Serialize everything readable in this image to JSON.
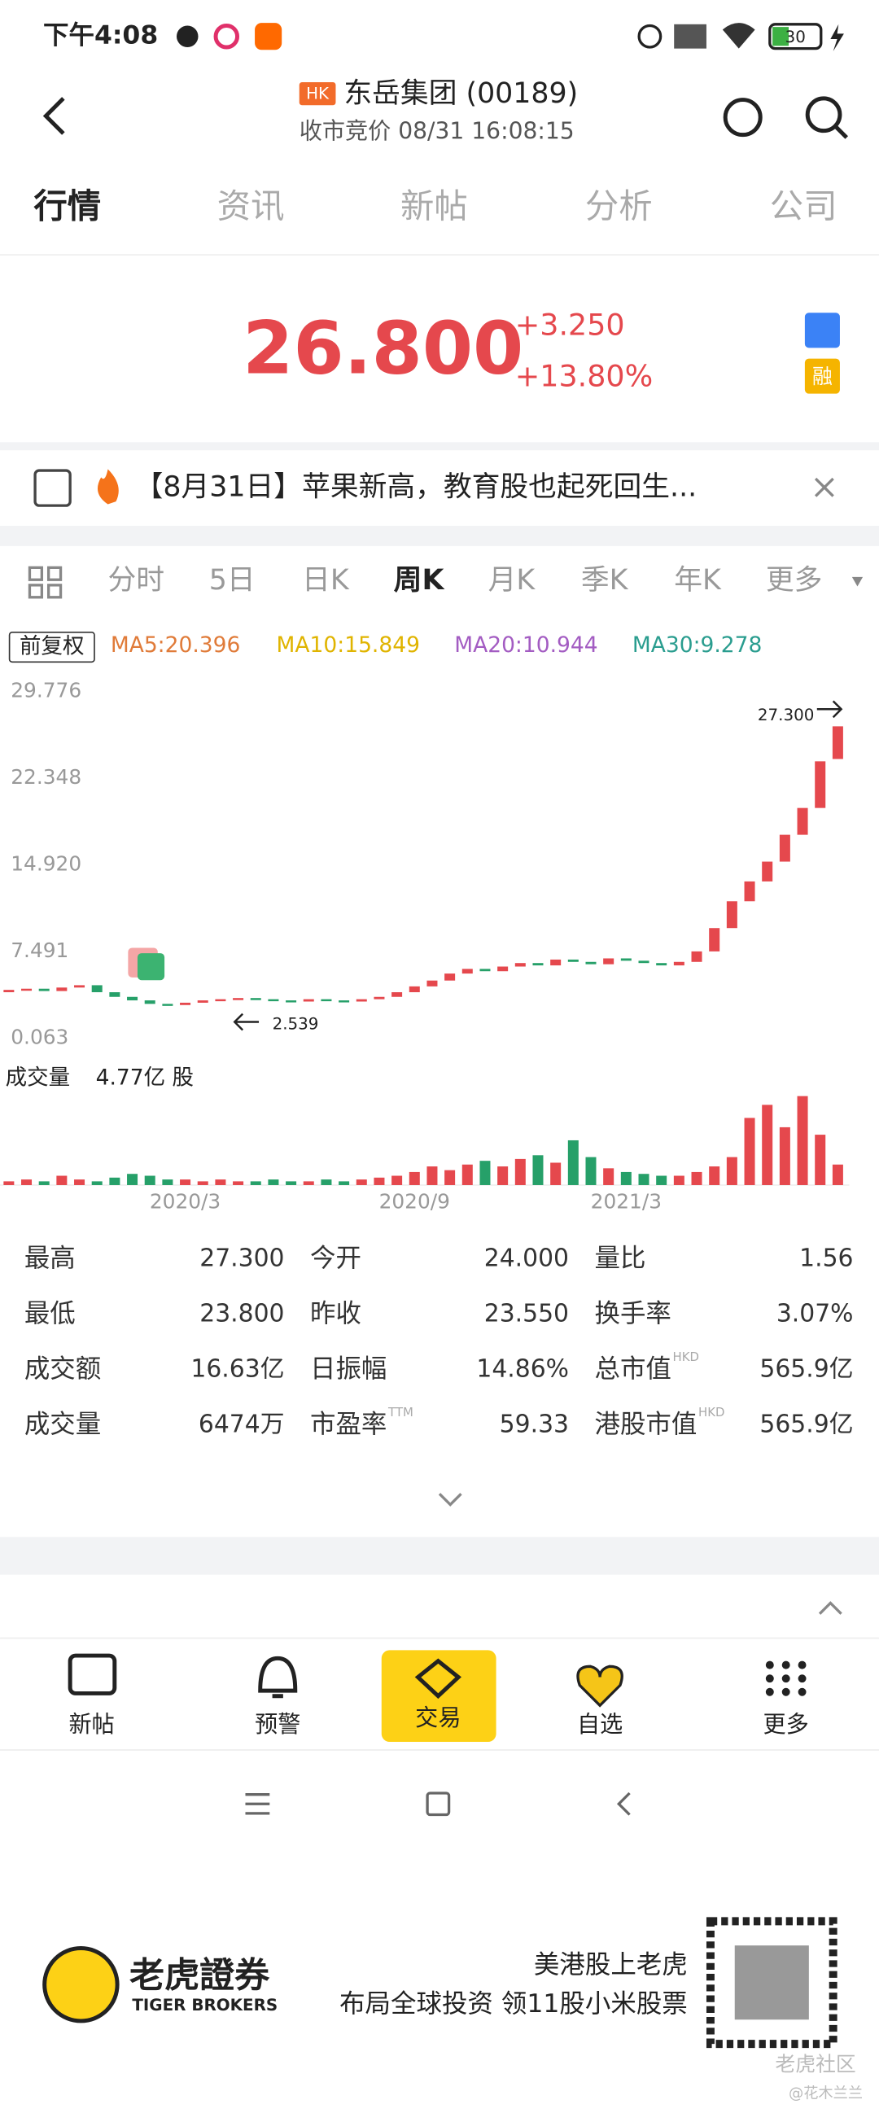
{
  "status_bar": {
    "time": "下午4:08",
    "battery": "30"
  },
  "header": {
    "badge": "HK",
    "title": "东岳集团 (00189)",
    "subtitle": "收市竞价 08/31 16:08:15"
  },
  "tabs": [
    "行情",
    "资讯",
    "新帖",
    "分析",
    "公司"
  ],
  "quote": {
    "price": "26.800",
    "change": "+3.250",
    "change_pct": "+13.80%",
    "badge_financing": "融"
  },
  "news": {
    "text": "【8月31日】苹果新高，教育股也起死回生..."
  },
  "kline_tabs": [
    "分时",
    "5日",
    "日K",
    "周K",
    "月K",
    "季K",
    "年K",
    "更多"
  ],
  "chart_data": {
    "type": "candlestick",
    "adjust": "前复权",
    "ma_legend": [
      {
        "label": "MA5:20.396",
        "color": "#e07b39"
      },
      {
        "label": "MA10:15.849",
        "color": "#e0b400"
      },
      {
        "label": "MA20:10.944",
        "color": "#a35cc2"
      },
      {
        "label": "MA30:9.278",
        "color": "#2a9d8f"
      }
    ],
    "yticks": [
      {
        "value": 29.776,
        "label": "29.776"
      },
      {
        "value": 22.348,
        "label": "22.348"
      },
      {
        "value": 14.92,
        "label": "14.920"
      },
      {
        "value": 7.491,
        "label": "7.491"
      },
      {
        "value": 0.063,
        "label": "0.063"
      }
    ],
    "annotations": {
      "high": "27.300",
      "low": "2.539"
    },
    "categories": [
      null,
      null,
      null,
      null,
      null,
      null,
      null,
      null,
      null,
      null,
      "2020/3",
      null,
      null,
      null,
      null,
      null,
      null,
      null,
      null,
      null,
      null,
      null,
      null,
      "2020/9",
      null,
      null,
      null,
      null,
      null,
      null,
      null,
      null,
      null,
      null,
      null,
      "2021/3",
      null,
      null,
      null,
      null,
      null,
      null,
      null,
      null,
      null,
      null,
      null,
      null
    ],
    "open": [
      4.0,
      4.2,
      4.3,
      4.1,
      4.4,
      4.6,
      4.0,
      3.6,
      3.3,
      3.0,
      2.9,
      3.1,
      3.3,
      3.4,
      3.5,
      3.4,
      3.3,
      3.2,
      3.4,
      3.3,
      3.2,
      3.4,
      3.6,
      4.0,
      4.5,
      5.0,
      5.6,
      6.0,
      5.8,
      6.2,
      6.5,
      6.3,
      6.8,
      6.6,
      6.4,
      6.9,
      6.7,
      6.5,
      6.3,
      6.6,
      7.5,
      9.5,
      11.8,
      13.5,
      15.2,
      17.5,
      19.8,
      24.0
    ],
    "close": [
      4.2,
      4.3,
      4.1,
      4.4,
      4.6,
      4.0,
      3.6,
      3.3,
      3.0,
      2.9,
      3.1,
      3.3,
      3.4,
      3.5,
      3.4,
      3.3,
      3.2,
      3.4,
      3.3,
      3.2,
      3.4,
      3.6,
      4.0,
      4.5,
      5.0,
      5.6,
      6.0,
      5.8,
      6.2,
      6.5,
      6.3,
      6.8,
      6.6,
      6.4,
      6.9,
      6.7,
      6.5,
      6.3,
      6.6,
      7.5,
      9.5,
      11.8,
      13.5,
      15.2,
      17.5,
      19.8,
      23.8,
      26.8
    ],
    "up_color": "#e5484d",
    "down_color": "#26a069",
    "volume_title": "成交量",
    "volume_max_label": "4.77亿 股",
    "volume": [
      0.2,
      0.3,
      0.2,
      0.5,
      0.3,
      0.2,
      0.4,
      0.6,
      0.5,
      0.3,
      0.3,
      0.2,
      0.3,
      0.2,
      0.2,
      0.3,
      0.2,
      0.2,
      0.3,
      0.2,
      0.3,
      0.4,
      0.5,
      0.7,
      1.0,
      0.8,
      1.1,
      1.3,
      1.0,
      1.4,
      1.6,
      1.2,
      2.4,
      1.5,
      0.9,
      0.7,
      0.6,
      0.5,
      0.5,
      0.7,
      1.0,
      1.5,
      3.6,
      4.3,
      3.1,
      4.77,
      2.7,
      1.1
    ]
  },
  "stats": [
    [
      {
        "label": "最高",
        "value": "27.300"
      },
      {
        "label": "今开",
        "value": "24.000"
      },
      {
        "label": "量比",
        "value": "1.56"
      }
    ],
    [
      {
        "label": "最低",
        "value": "23.800"
      },
      {
        "label": "昨收",
        "value": "23.550"
      },
      {
        "label": "换手率",
        "value": "3.07%"
      }
    ],
    [
      {
        "label": "成交额",
        "value": "16.63亿"
      },
      {
        "label": "日振幅",
        "value": "14.86%"
      },
      {
        "label": "总市值",
        "sup": "HKD",
        "value": "565.9亿"
      }
    ],
    [
      {
        "label": "成交量",
        "value": "6474万"
      },
      {
        "label": "市盈率",
        "sup": "TTM",
        "value": "59.33"
      },
      {
        "label": "港股市值",
        "sup": "HKD",
        "value": "565.9亿"
      }
    ]
  ],
  "bottom_nav": [
    "新帖",
    "预警",
    "交易",
    "自选",
    "更多"
  ],
  "ad": {
    "brand": "老虎證券",
    "brand_en": "TIGER BROKERS",
    "line1": "美港股上老虎",
    "line2": "布局全球投资 领11股小米股票",
    "watermark": "老虎社区",
    "user": "@花木兰兰"
  }
}
